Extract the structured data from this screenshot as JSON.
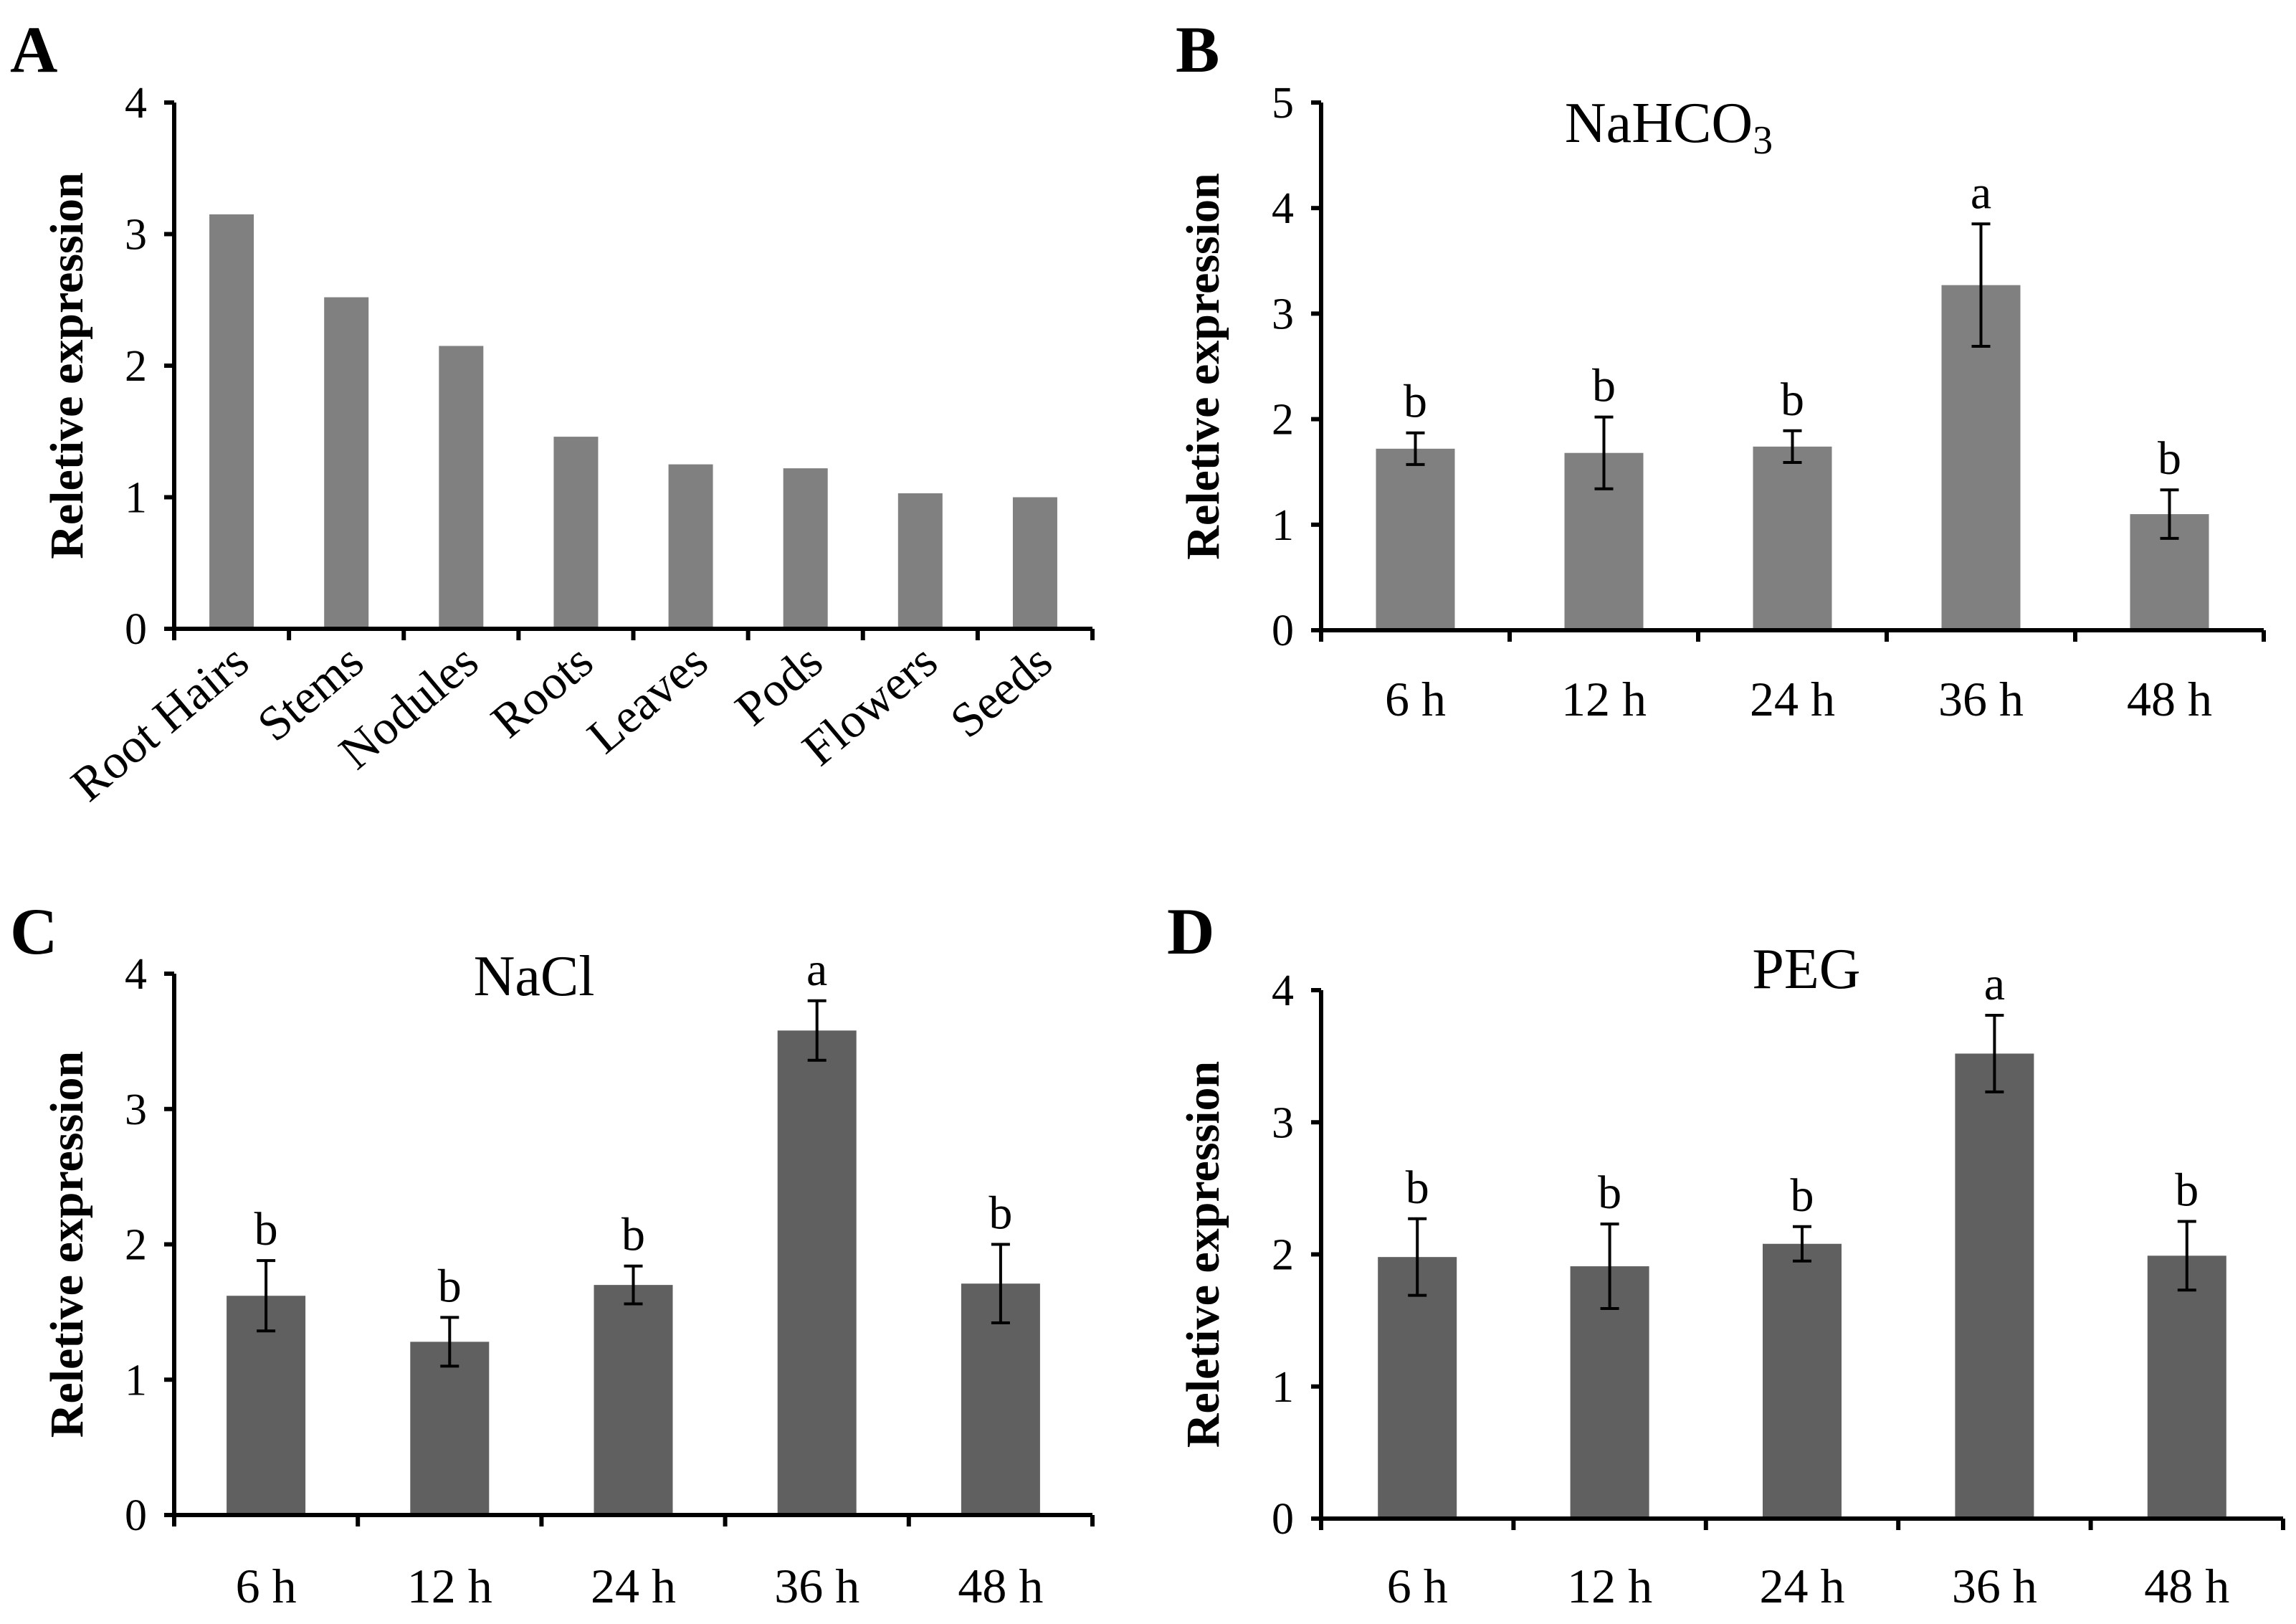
{
  "chart_data": [
    {
      "panel": "A",
      "type": "bar",
      "title": "",
      "ylabel": "Reletive expression",
      "xlabel": "",
      "ylim": [
        0,
        4
      ],
      "yticks": [
        "0",
        "1",
        "2",
        "3",
        "4"
      ],
      "bar_color": "#808080",
      "categories": [
        "Root Hairs",
        "Stems",
        "Nodules",
        "Roots",
        "Leaves",
        "Pods",
        "Flowers",
        "Seeds"
      ],
      "values": [
        3.15,
        2.52,
        2.15,
        1.46,
        1.25,
        1.22,
        1.03,
        1.0
      ]
    },
    {
      "panel": "B",
      "type": "bar",
      "title": "NaHCO",
      "title_subscript": "3",
      "ylabel": "Reletive expression",
      "xlabel": "",
      "ylim": [
        0,
        5
      ],
      "yticks": [
        "0",
        "1",
        "2",
        "3",
        "4",
        "5"
      ],
      "bar_color": "#808080",
      "categories": [
        "6 h",
        "12 h",
        "24 h",
        "36 h",
        "48 h"
      ],
      "values": [
        1.72,
        1.68,
        1.74,
        3.27,
        1.1
      ],
      "errors": [
        0.15,
        0.34,
        0.15,
        0.58,
        0.23
      ],
      "labels": [
        "b",
        "b",
        "b",
        "a",
        "b"
      ]
    },
    {
      "panel": "C",
      "type": "bar",
      "title": "NaCl",
      "ylabel": "Reletive expression",
      "xlabel": "",
      "ylim": [
        0,
        4
      ],
      "yticks": [
        "0",
        "1",
        "2",
        "3",
        "4"
      ],
      "bar_color": "#606060",
      "categories": [
        "6 h",
        "12 h",
        "24 h",
        "36 h",
        "48 h"
      ],
      "values": [
        1.62,
        1.28,
        1.7,
        3.58,
        1.71
      ],
      "errors": [
        0.26,
        0.18,
        0.14,
        0.22,
        0.29
      ],
      "labels": [
        "b",
        "b",
        "b",
        "a",
        "b"
      ]
    },
    {
      "panel": "D",
      "type": "bar",
      "title": "PEG",
      "ylabel": "Reletive expression",
      "xlabel": "",
      "ylim": [
        0,
        4
      ],
      "yticks": [
        "0",
        "1",
        "2",
        "3",
        "4"
      ],
      "bar_color": "#606060",
      "categories": [
        "6 h",
        "12 h",
        "24 h",
        "36 h",
        "48 h"
      ],
      "values": [
        1.98,
        1.91,
        2.08,
        3.52,
        1.99
      ],
      "errors": [
        0.29,
        0.32,
        0.13,
        0.29,
        0.26
      ],
      "labels": [
        "b",
        "b",
        "b",
        "a",
        "b"
      ]
    }
  ]
}
